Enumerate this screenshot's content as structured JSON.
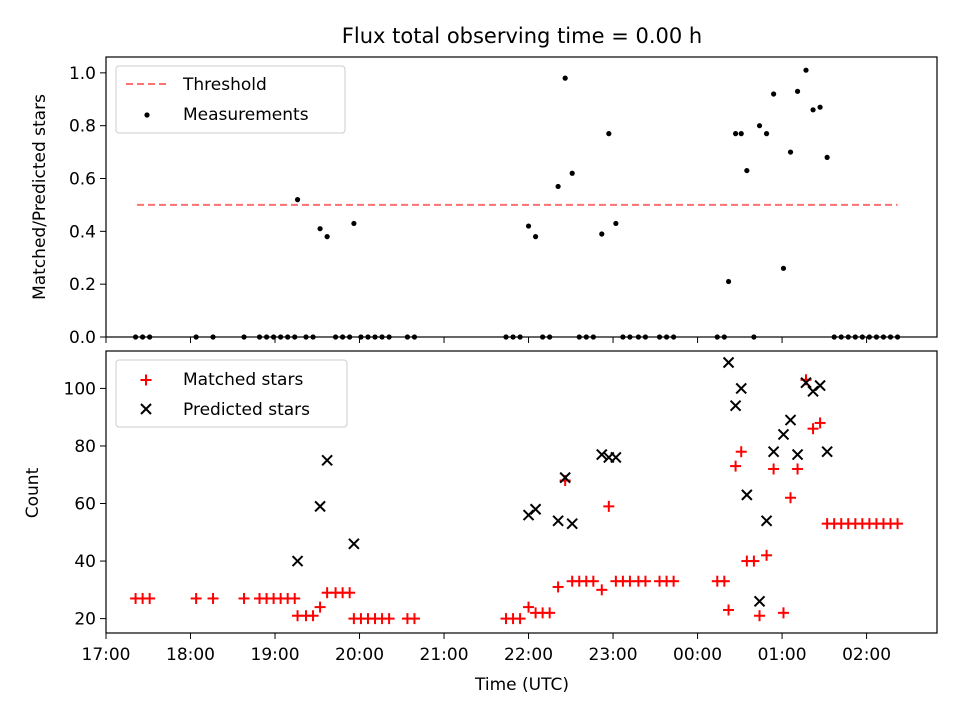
{
  "chart_data": [
    {
      "type": "scatter",
      "title": "Flux total observing time = 0.00 h",
      "xlabel": "",
      "ylabel": "Matched/Predicted stars",
      "xlim": [
        "17:00",
        "02:50"
      ],
      "ylim": [
        0,
        1.06
      ],
      "y_ticks": [
        0.0,
        0.2,
        0.4,
        0.6,
        0.8,
        1.0
      ],
      "y_tick_labels": [
        "0.0",
        "0.2",
        "0.4",
        "0.6",
        "0.8",
        "1.0"
      ],
      "grid": false,
      "legend_position": "top-left",
      "series": [
        {
          "name": "Threshold",
          "style": "dashed-line",
          "color": "#ff7070",
          "points": [
            {
              "x": "17:22",
              "y": 0.5
            },
            {
              "x": "02:22",
              "y": 0.5
            }
          ]
        },
        {
          "name": "Measurements",
          "style": "dot",
          "color": "#000000",
          "points": [
            {
              "x": "17:21",
              "y": 0.0
            },
            {
              "x": "17:26",
              "y": 0.0
            },
            {
              "x": "17:31",
              "y": 0.0
            },
            {
              "x": "18:04",
              "y": 0.0
            },
            {
              "x": "18:16",
              "y": 0.0
            },
            {
              "x": "18:38",
              "y": 0.0
            },
            {
              "x": "18:49",
              "y": 0.0
            },
            {
              "x": "18:54",
              "y": 0.0
            },
            {
              "x": "18:59",
              "y": 0.0
            },
            {
              "x": "19:04",
              "y": 0.0
            },
            {
              "x": "19:09",
              "y": 0.0
            },
            {
              "x": "19:14",
              "y": 0.0
            },
            {
              "x": "19:16",
              "y": 0.52
            },
            {
              "x": "19:22",
              "y": 0.0
            },
            {
              "x": "19:27",
              "y": 0.0
            },
            {
              "x": "19:32",
              "y": 0.41
            },
            {
              "x": "19:37",
              "y": 0.38
            },
            {
              "x": "19:43",
              "y": 0.0
            },
            {
              "x": "19:48",
              "y": 0.0
            },
            {
              "x": "19:53",
              "y": 0.0
            },
            {
              "x": "19:56",
              "y": 0.43
            },
            {
              "x": "20:01",
              "y": 0.0
            },
            {
              "x": "20:06",
              "y": 0.0
            },
            {
              "x": "20:11",
              "y": 0.0
            },
            {
              "x": "20:16",
              "y": 0.0
            },
            {
              "x": "20:21",
              "y": 0.0
            },
            {
              "x": "20:34",
              "y": 0.0
            },
            {
              "x": "20:39",
              "y": 0.0
            },
            {
              "x": "21:44",
              "y": 0.0
            },
            {
              "x": "21:49",
              "y": 0.0
            },
            {
              "x": "21:54",
              "y": 0.0
            },
            {
              "x": "22:00",
              "y": 0.42
            },
            {
              "x": "22:05",
              "y": 0.38
            },
            {
              "x": "22:10",
              "y": 0.0
            },
            {
              "x": "22:15",
              "y": 0.0
            },
            {
              "x": "22:21",
              "y": 0.57
            },
            {
              "x": "22:26",
              "y": 0.98
            },
            {
              "x": "22:31",
              "y": 0.62
            },
            {
              "x": "22:36",
              "y": 0.0
            },
            {
              "x": "22:41",
              "y": 0.0
            },
            {
              "x": "22:46",
              "y": 0.0
            },
            {
              "x": "22:52",
              "y": 0.39
            },
            {
              "x": "22:57",
              "y": 0.77
            },
            {
              "x": "23:02",
              "y": 0.43
            },
            {
              "x": "23:07",
              "y": 0.0
            },
            {
              "x": "23:12",
              "y": 0.0
            },
            {
              "x": "23:18",
              "y": 0.0
            },
            {
              "x": "23:23",
              "y": 0.0
            },
            {
              "x": "23:33",
              "y": 0.0
            },
            {
              "x": "23:38",
              "y": 0.0
            },
            {
              "x": "23:43",
              "y": 0.0
            },
            {
              "x": "00:14",
              "y": 0.0
            },
            {
              "x": "00:19",
              "y": 0.0
            },
            {
              "x": "00:22",
              "y": 0.21
            },
            {
              "x": "00:27",
              "y": 0.77
            },
            {
              "x": "00:31",
              "y": 0.77
            },
            {
              "x": "00:35",
              "y": 0.63
            },
            {
              "x": "00:40",
              "y": 0.0
            },
            {
              "x": "00:44",
              "y": 0.8
            },
            {
              "x": "00:49",
              "y": 0.77
            },
            {
              "x": "00:54",
              "y": 0.92
            },
            {
              "x": "01:01",
              "y": 0.26
            },
            {
              "x": "01:06",
              "y": 0.7
            },
            {
              "x": "01:11",
              "y": 0.93
            },
            {
              "x": "01:17",
              "y": 1.01
            },
            {
              "x": "01:22",
              "y": 0.86
            },
            {
              "x": "01:27",
              "y": 0.87
            },
            {
              "x": "01:32",
              "y": 0.68
            },
            {
              "x": "01:37",
              "y": 0.0
            },
            {
              "x": "01:42",
              "y": 0.0
            },
            {
              "x": "01:47",
              "y": 0.0
            },
            {
              "x": "01:52",
              "y": 0.0
            },
            {
              "x": "01:57",
              "y": 0.0
            },
            {
              "x": "02:02",
              "y": 0.0
            },
            {
              "x": "02:07",
              "y": 0.0
            },
            {
              "x": "02:12",
              "y": 0.0
            },
            {
              "x": "02:17",
              "y": 0.0
            },
            {
              "x": "02:22",
              "y": 0.0
            }
          ]
        }
      ]
    },
    {
      "type": "scatter",
      "title": "",
      "xlabel": "Time (UTC)",
      "ylabel": "Count",
      "xlim": [
        "17:00",
        "02:50"
      ],
      "ylim": [
        15,
        113
      ],
      "x_ticks": [
        "17:00",
        "18:00",
        "19:00",
        "20:00",
        "21:00",
        "22:00",
        "23:00",
        "00:00",
        "01:00",
        "02:00"
      ],
      "x_tick_labels": [
        "17:00",
        "18:00",
        "19:00",
        "20:00",
        "21:00",
        "22:00",
        "23:00",
        "00:00",
        "01:00",
        "02:00"
      ],
      "y_ticks": [
        20,
        40,
        60,
        80,
        100
      ],
      "y_tick_labels": [
        "20",
        "40",
        "60",
        "80",
        "100"
      ],
      "grid": false,
      "legend_position": "top-left",
      "series": [
        {
          "name": "Matched stars",
          "style": "plus",
          "color": "#ff0000",
          "points": [
            {
              "x": "17:21",
              "y": 27
            },
            {
              "x": "17:26",
              "y": 27
            },
            {
              "x": "17:31",
              "y": 27
            },
            {
              "x": "18:04",
              "y": 27
            },
            {
              "x": "18:16",
              "y": 27
            },
            {
              "x": "18:38",
              "y": 27
            },
            {
              "x": "18:49",
              "y": 27
            },
            {
              "x": "18:54",
              "y": 27
            },
            {
              "x": "18:59",
              "y": 27
            },
            {
              "x": "19:04",
              "y": 27
            },
            {
              "x": "19:09",
              "y": 27
            },
            {
              "x": "19:14",
              "y": 27
            },
            {
              "x": "19:16",
              "y": 21
            },
            {
              "x": "19:22",
              "y": 21
            },
            {
              "x": "19:27",
              "y": 21
            },
            {
              "x": "19:32",
              "y": 24
            },
            {
              "x": "19:37",
              "y": 29
            },
            {
              "x": "19:43",
              "y": 29
            },
            {
              "x": "19:48",
              "y": 29
            },
            {
              "x": "19:53",
              "y": 29
            },
            {
              "x": "19:56",
              "y": 20
            },
            {
              "x": "20:01",
              "y": 20
            },
            {
              "x": "20:06",
              "y": 20
            },
            {
              "x": "20:11",
              "y": 20
            },
            {
              "x": "20:16",
              "y": 20
            },
            {
              "x": "20:21",
              "y": 20
            },
            {
              "x": "20:34",
              "y": 20
            },
            {
              "x": "20:39",
              "y": 20
            },
            {
              "x": "21:44",
              "y": 20
            },
            {
              "x": "21:49",
              "y": 20
            },
            {
              "x": "21:54",
              "y": 20
            },
            {
              "x": "22:00",
              "y": 24
            },
            {
              "x": "22:05",
              "y": 22
            },
            {
              "x": "22:10",
              "y": 22
            },
            {
              "x": "22:15",
              "y": 22
            },
            {
              "x": "22:21",
              "y": 31
            },
            {
              "x": "22:26",
              "y": 68
            },
            {
              "x": "22:31",
              "y": 33
            },
            {
              "x": "22:36",
              "y": 33
            },
            {
              "x": "22:41",
              "y": 33
            },
            {
              "x": "22:46",
              "y": 33
            },
            {
              "x": "22:52",
              "y": 30
            },
            {
              "x": "22:57",
              "y": 59
            },
            {
              "x": "23:02",
              "y": 33
            },
            {
              "x": "23:07",
              "y": 33
            },
            {
              "x": "23:12",
              "y": 33
            },
            {
              "x": "23:18",
              "y": 33
            },
            {
              "x": "23:23",
              "y": 33
            },
            {
              "x": "23:33",
              "y": 33
            },
            {
              "x": "23:38",
              "y": 33
            },
            {
              "x": "23:43",
              "y": 33
            },
            {
              "x": "00:14",
              "y": 33
            },
            {
              "x": "00:19",
              "y": 33
            },
            {
              "x": "00:22",
              "y": 23
            },
            {
              "x": "00:27",
              "y": 73
            },
            {
              "x": "00:31",
              "y": 78
            },
            {
              "x": "00:35",
              "y": 40
            },
            {
              "x": "00:40",
              "y": 40
            },
            {
              "x": "00:44",
              "y": 21
            },
            {
              "x": "00:49",
              "y": 42
            },
            {
              "x": "00:54",
              "y": 72
            },
            {
              "x": "01:01",
              "y": 22
            },
            {
              "x": "01:06",
              "y": 62
            },
            {
              "x": "01:11",
              "y": 72
            },
            {
              "x": "01:17",
              "y": 103
            },
            {
              "x": "01:22",
              "y": 86
            },
            {
              "x": "01:27",
              "y": 88
            },
            {
              "x": "01:32",
              "y": 53
            },
            {
              "x": "01:37",
              "y": 53
            },
            {
              "x": "01:42",
              "y": 53
            },
            {
              "x": "01:47",
              "y": 53
            },
            {
              "x": "01:52",
              "y": 53
            },
            {
              "x": "01:57",
              "y": 53
            },
            {
              "x": "02:02",
              "y": 53
            },
            {
              "x": "02:07",
              "y": 53
            },
            {
              "x": "02:12",
              "y": 53
            },
            {
              "x": "02:17",
              "y": 53
            },
            {
              "x": "02:22",
              "y": 53
            }
          ]
        },
        {
          "name": "Predicted stars",
          "style": "x",
          "color": "#000000",
          "points": [
            {
              "x": "19:16",
              "y": 40
            },
            {
              "x": "19:32",
              "y": 59
            },
            {
              "x": "19:37",
              "y": 75
            },
            {
              "x": "19:56",
              "y": 46
            },
            {
              "x": "22:00",
              "y": 56
            },
            {
              "x": "22:05",
              "y": 58
            },
            {
              "x": "22:21",
              "y": 54
            },
            {
              "x": "22:26",
              "y": 69
            },
            {
              "x": "22:31",
              "y": 53
            },
            {
              "x": "22:52",
              "y": 77
            },
            {
              "x": "22:57",
              "y": 76
            },
            {
              "x": "23:02",
              "y": 76
            },
            {
              "x": "00:22",
              "y": 109
            },
            {
              "x": "00:27",
              "y": 94
            },
            {
              "x": "00:31",
              "y": 100
            },
            {
              "x": "00:35",
              "y": 63
            },
            {
              "x": "00:44",
              "y": 26
            },
            {
              "x": "00:49",
              "y": 54
            },
            {
              "x": "00:54",
              "y": 78
            },
            {
              "x": "01:01",
              "y": 84
            },
            {
              "x": "01:06",
              "y": 89
            },
            {
              "x": "01:11",
              "y": 77
            },
            {
              "x": "01:17",
              "y": 102
            },
            {
              "x": "01:22",
              "y": 99
            },
            {
              "x": "01:27",
              "y": 101
            },
            {
              "x": "01:32",
              "y": 78
            }
          ]
        }
      ]
    }
  ]
}
